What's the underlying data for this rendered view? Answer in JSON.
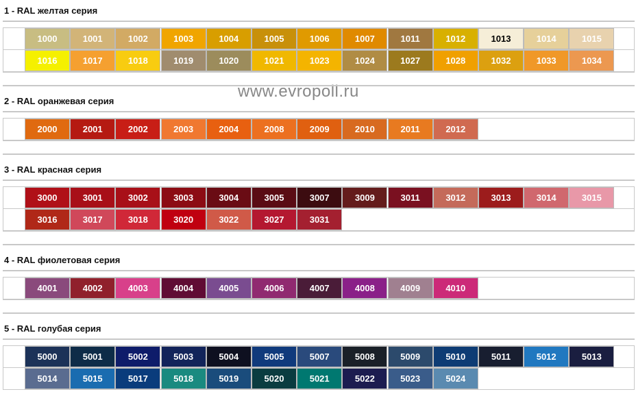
{
  "watermark": "www.evropoll.ru",
  "sections": [
    {
      "title": "1 - RAL желтая серия",
      "rows": [
        [
          {
            "code": "1000",
            "color": "#c8bd82"
          },
          {
            "code": "1001",
            "color": "#d2b478"
          },
          {
            "code": "1002",
            "color": "#d2aa64"
          },
          {
            "code": "1003",
            "color": "#f0a500"
          },
          {
            "code": "1004",
            "color": "#d89e00"
          },
          {
            "code": "1005",
            "color": "#c8900a"
          },
          {
            "code": "1006",
            "color": "#e09a00"
          },
          {
            "code": "1007",
            "color": "#e08a00"
          },
          {
            "code": "1011",
            "color": "#a07840"
          },
          {
            "code": "1012",
            "color": "#d8b000"
          },
          {
            "code": "1013",
            "color": "#f6eed8"
          },
          {
            "code": "1014",
            "color": "#e6d09a"
          },
          {
            "code": "1015",
            "color": "#e8d2ae"
          }
        ],
        [
          {
            "code": "1016",
            "color": "#f5f000"
          },
          {
            "code": "1017",
            "color": "#f5a030"
          },
          {
            "code": "1018",
            "color": "#f8cc10"
          },
          {
            "code": "1019",
            "color": "#a08c6e"
          },
          {
            "code": "1020",
            "color": "#9c8c5c"
          },
          {
            "code": "1021",
            "color": "#f0b800"
          },
          {
            "code": "1023",
            "color": "#f4b400"
          },
          {
            "code": "1024",
            "color": "#b08c44"
          },
          {
            "code": "1027",
            "color": "#9c7a1e"
          },
          {
            "code": "1028",
            "color": "#f0a000"
          },
          {
            "code": "1032",
            "color": "#dca010"
          },
          {
            "code": "1033",
            "color": "#f09828"
          },
          {
            "code": "1034",
            "color": "#ec9850"
          }
        ]
      ]
    },
    {
      "title": "2 - RAL оранжевая серия",
      "rows": [
        [
          {
            "code": "2000",
            "color": "#e06a10"
          },
          {
            "code": "2001",
            "color": "#b51a12"
          },
          {
            "code": "2002",
            "color": "#c81e16"
          },
          {
            "code": "2003",
            "color": "#f07830"
          },
          {
            "code": "2004",
            "color": "#e86010"
          },
          {
            "code": "2008",
            "color": "#ec7020"
          },
          {
            "code": "2009",
            "color": "#e06010"
          },
          {
            "code": "2010",
            "color": "#d86a20"
          },
          {
            "code": "2011",
            "color": "#e87a20"
          },
          {
            "code": "2012",
            "color": "#d06a50"
          }
        ]
      ]
    },
    {
      "title": "3 - RAL красная серия",
      "rows": [
        [
          {
            "code": "3000",
            "color": "#b01018"
          },
          {
            "code": "3001",
            "color": "#a80f18"
          },
          {
            "code": "3002",
            "color": "#a81018"
          },
          {
            "code": "3003",
            "color": "#8c0c14"
          },
          {
            "code": "3004",
            "color": "#6a0c14"
          },
          {
            "code": "3005",
            "color": "#5a0c14"
          },
          {
            "code": "3007",
            "color": "#3c0c10"
          },
          {
            "code": "3009",
            "color": "#641c1c"
          },
          {
            "code": "3011",
            "color": "#7a1020"
          },
          {
            "code": "3012",
            "color": "#c46a5a"
          },
          {
            "code": "3013",
            "color": "#9c1c1c"
          },
          {
            "code": "3014",
            "color": "#d0686e"
          },
          {
            "code": "3015",
            "color": "#e898a8"
          }
        ],
        [
          {
            "code": "3016",
            "color": "#b02818"
          },
          {
            "code": "3017",
            "color": "#d0485a"
          },
          {
            "code": "3018",
            "color": "#d02838"
          },
          {
            "code": "3020",
            "color": "#c00010"
          },
          {
            "code": "3022",
            "color": "#d05a48"
          },
          {
            "code": "3027",
            "color": "#b41830"
          },
          {
            "code": "3031",
            "color": "#a42030"
          }
        ]
      ]
    },
    {
      "title": "4 - RAL фиолетовая серия",
      "rows": [
        [
          {
            "code": "4001",
            "color": "#8a4a7c"
          },
          {
            "code": "4002",
            "color": "#90202c"
          },
          {
            "code": "4003",
            "color": "#d8408a"
          },
          {
            "code": "4004",
            "color": "#600c34"
          },
          {
            "code": "4005",
            "color": "#7a4c90"
          },
          {
            "code": "4006",
            "color": "#902a70"
          },
          {
            "code": "4007",
            "color": "#4a1c38"
          },
          {
            "code": "4008",
            "color": "#8a2088"
          },
          {
            "code": "4009",
            "color": "#a08090"
          },
          {
            "code": "4010",
            "color": "#cc2a78"
          }
        ]
      ]
    },
    {
      "title": "5 - RAL голубая серия",
      "rows": [
        [
          {
            "code": "5000",
            "color": "#1c3258"
          },
          {
            "code": "5001",
            "color": "#0e2c48"
          },
          {
            "code": "5002",
            "color": "#0e1c6a"
          },
          {
            "code": "5003",
            "color": "#12245a"
          },
          {
            "code": "5004",
            "color": "#0e1020"
          },
          {
            "code": "5005",
            "color": "#103a7c"
          },
          {
            "code": "5007",
            "color": "#2a4a7c"
          },
          {
            "code": "5008",
            "color": "#1a2028"
          },
          {
            "code": "5009",
            "color": "#2c4a6c"
          },
          {
            "code": "5010",
            "color": "#0e3c74"
          },
          {
            "code": "5011",
            "color": "#181e30"
          },
          {
            "code": "5012",
            "color": "#2078c0"
          },
          {
            "code": "5013",
            "color": "#1a1e40"
          }
        ],
        [
          {
            "code": "5014",
            "color": "#5a6c90"
          },
          {
            "code": "5015",
            "color": "#1a6cb0"
          },
          {
            "code": "5017",
            "color": "#0a3c7c"
          },
          {
            "code": "5018",
            "color": "#1a8a80"
          },
          {
            "code": "5019",
            "color": "#1a4c7c"
          },
          {
            "code": "5020",
            "color": "#0a3c40"
          },
          {
            "code": "5021",
            "color": "#007870"
          },
          {
            "code": "5022",
            "color": "#1c1c50"
          },
          {
            "code": "5023",
            "color": "#3a5c8a"
          },
          {
            "code": "5024",
            "color": "#5a8ab0"
          }
        ]
      ]
    }
  ]
}
